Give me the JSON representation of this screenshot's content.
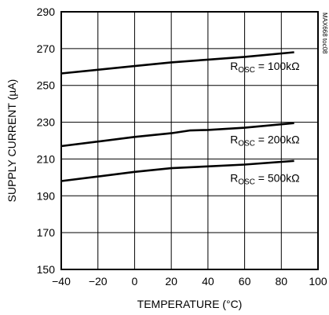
{
  "chart_data": {
    "type": "line",
    "xlabel": "TEMPERATURE (°C)",
    "ylabel": "SUPPLY CURRENT (µA)",
    "xlim": [
      -40,
      100
    ],
    "ylim": [
      150,
      290
    ],
    "xticks": [
      -40,
      -20,
      0,
      20,
      40,
      60,
      80,
      100
    ],
    "yticks": [
      150,
      170,
      190,
      210,
      230,
      250,
      270,
      290
    ],
    "grid": true,
    "legend": "none",
    "series": [
      {
        "label_main": "R",
        "label_sub": "OSC",
        "label_rest": " = 100kΩ",
        "x": [
          -40,
          -20,
          0,
          20,
          40,
          60,
          87
        ],
        "y": [
          256.5,
          258.5,
          260.5,
          262.5,
          264,
          265.5,
          268
        ]
      },
      {
        "label_main": "R",
        "label_sub": "OSC",
        "label_rest": " = 200kΩ",
        "x": [
          -40,
          -20,
          0,
          20,
          30,
          40,
          60,
          87
        ],
        "y": [
          217,
          219.5,
          222,
          224,
          225.5,
          225.8,
          227,
          229.5
        ]
      },
      {
        "label_main": "R",
        "label_sub": "OSC",
        "label_rest": " = 500kΩ",
        "x": [
          -40,
          -20,
          0,
          20,
          40,
          60,
          87
        ],
        "y": [
          198,
          200.5,
          203,
          205,
          206,
          207,
          209
        ]
      }
    ],
    "code": "MAX668 toc08"
  }
}
